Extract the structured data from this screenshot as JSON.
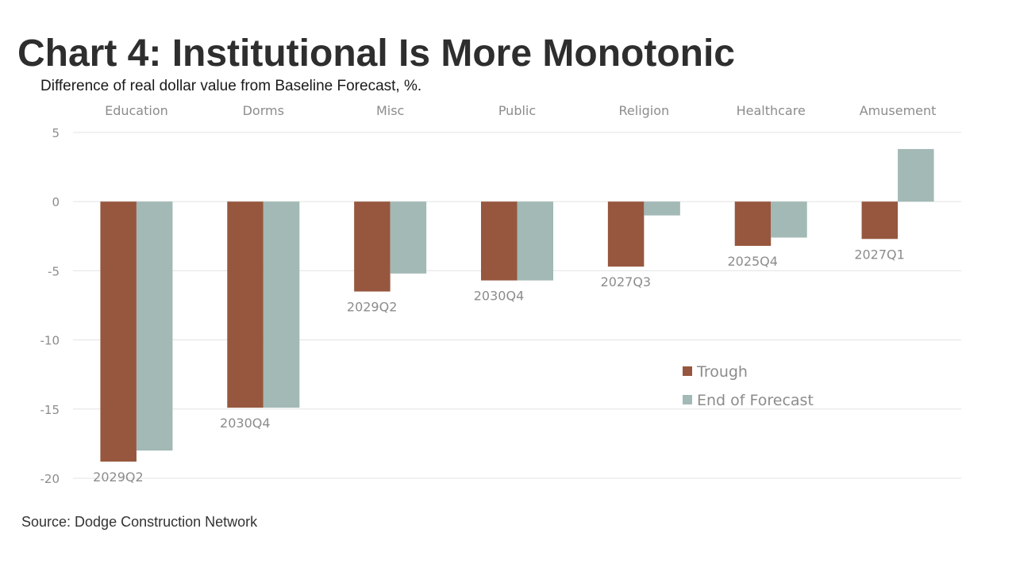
{
  "title": "Chart 4: Institutional Is More Monotonic",
  "subtitle": "Difference of real dollar value from Baseline Forecast, %.",
  "source": "Source: Dodge Construction Network",
  "chart_data": {
    "type": "bar",
    "title": "Chart 4: Institutional Is More Monotonic",
    "ylabel": "Difference of real dollar value from Baseline Forecast, %.",
    "xlabel": "",
    "ylim": [
      -20,
      5
    ],
    "yticks": [
      5,
      0,
      -5,
      -10,
      -15,
      -20
    ],
    "grid": true,
    "legend_position": "center-right",
    "categories": [
      "Education",
      "Dorms",
      "Misc",
      "Public",
      "Religion",
      "Healthcare",
      "Amusement"
    ],
    "series": [
      {
        "name": "Trough",
        "color": "#96573e",
        "values": [
          -18.8,
          -14.9,
          -6.5,
          -5.7,
          -4.7,
          -3.2,
          -2.7
        ]
      },
      {
        "name": "End of Forecast",
        "color": "#a2b9b5",
        "values": [
          -18.0,
          -14.9,
          -5.2,
          -5.7,
          -1.0,
          -2.6,
          3.8
        ]
      }
    ],
    "annotations": [
      "2029Q2",
      "2030Q4",
      "2029Q2",
      "2030Q4",
      "2027Q3",
      "2025Q4",
      "2027Q1"
    ]
  }
}
